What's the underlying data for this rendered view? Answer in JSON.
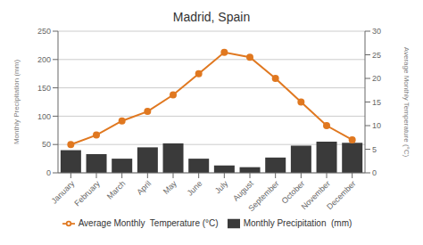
{
  "chart_data": {
    "type": "bar",
    "title": "Madrid, Spain",
    "categories": [
      "January",
      "February",
      "March",
      "April",
      "May",
      "June",
      "July",
      "August",
      "September",
      "October",
      "November",
      "December"
    ],
    "series": [
      {
        "name": "Monthly Precipitation  (mm)",
        "type": "bar",
        "color": "#3a3a3a",
        "values": [
          40,
          33,
          25,
          45,
          52,
          25,
          13,
          10,
          27,
          48,
          55,
          53
        ]
      },
      {
        "name": "Average Monthly  Temperature (°C)",
        "type": "line",
        "color": "#e07820",
        "marker": "circle",
        "axis": "y2",
        "values": [
          6,
          8,
          11,
          13,
          16.5,
          21,
          25.5,
          24.5,
          20,
          15,
          10,
          7
        ]
      }
    ],
    "ylabel": "Monthly Precipitation  (mm)",
    "y2label": "Average Monthly  Temperature (°C)",
    "ylim": [
      0,
      250
    ],
    "yticks": [
      0,
      50,
      100,
      150,
      200,
      250
    ],
    "y2lim": [
      0,
      30
    ],
    "y2ticks": [
      0,
      5,
      10,
      15,
      20,
      25,
      30
    ],
    "grid": true,
    "legend": "bottom"
  }
}
